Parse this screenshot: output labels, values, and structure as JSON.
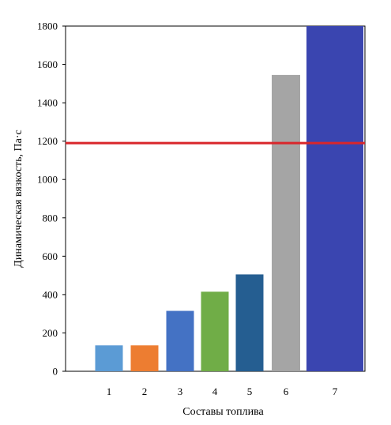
{
  "chart_data": {
    "type": "bar",
    "title": "",
    "xlabel": "Составы топлива",
    "ylabel": "Динамическая вязкость, Па·с",
    "categories": [
      "1",
      "2",
      "3",
      "4",
      "5",
      "6",
      "7"
    ],
    "values": [
      135,
      135,
      315,
      415,
      505,
      1545,
      1800
    ],
    "bar_colors": [
      "#5b9bd5",
      "#ed7d31",
      "#4472c4",
      "#70ad47",
      "#255e91",
      "#a5a5a5",
      "#3a45b0"
    ],
    "ylim": [
      0,
      1800
    ],
    "yticks": [
      "0",
      "200",
      "400",
      "600",
      "800",
      "1000",
      "1200",
      "1400",
      "1600",
      "1800"
    ],
    "reference_line": {
      "value": 1190,
      "color": "#d9262b"
    },
    "grid": false,
    "legend": "none"
  }
}
